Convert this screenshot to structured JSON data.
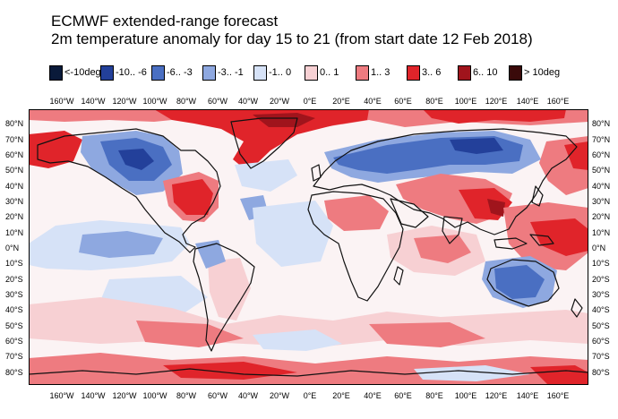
{
  "title_line1": "ECMWF extended-range forecast",
  "title_line2": "2m temperature anomaly for day 15 to 21 (from start date 12 Feb 2018)",
  "legend": [
    {
      "label": "<-10deg",
      "color": "#0a1a3a"
    },
    {
      "label": "-10.. -6",
      "color": "#23409a"
    },
    {
      "label": "-6.. -3",
      "color": "#4a6fc2"
    },
    {
      "label": "-3.. -1",
      "color": "#8ea8e0"
    },
    {
      "label": "-1.. 0",
      "color": "#d6e2f7"
    },
    {
      "label": "0.. 1",
      "color": "#f7d0d3"
    },
    {
      "label": "1.. 3",
      "color": "#ee7b80"
    },
    {
      "label": "3.. 6",
      "color": "#e0242a"
    },
    {
      "label": "6.. 10",
      "color": "#a0141c"
    },
    {
      "label": "> 10deg",
      "color": "#3a0a0a"
    }
  ],
  "lon_labels": [
    "160°W",
    "140°W",
    "120°W",
    "100°W",
    "80°W",
    "60°W",
    "40°W",
    "20°W",
    "0°E",
    "20°E",
    "40°E",
    "60°E",
    "80°E",
    "100°E",
    "120°E",
    "140°E",
    "160°E"
  ],
  "lat_labels": [
    "80°N",
    "70°N",
    "60°N",
    "50°N",
    "40°N",
    "30°N",
    "20°N",
    "10°N",
    "0°N",
    "10°S",
    "20°S",
    "30°S",
    "40°S",
    "50°S",
    "60°S",
    "70°S",
    "80°S"
  ]
}
